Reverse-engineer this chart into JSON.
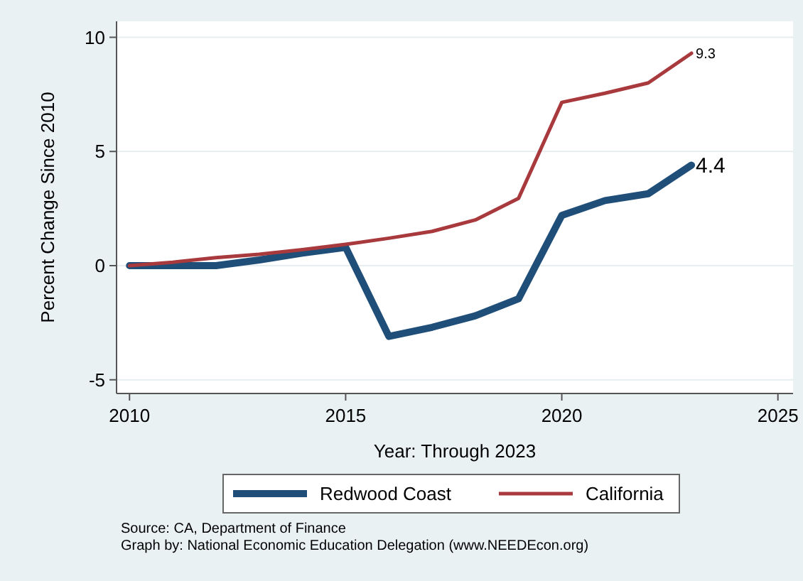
{
  "chart_data": {
    "type": "line",
    "xlabel": "Year: Through 2023",
    "ylabel": "Percent Change Since 2010",
    "x": [
      2010,
      2011,
      2012,
      2013,
      2014,
      2015,
      2016,
      2017,
      2018,
      2019,
      2020,
      2021,
      2022,
      2023
    ],
    "series": [
      {
        "name": "Redwood Coast",
        "color": "#1f4e79",
        "values": [
          0,
          0,
          0,
          0.25,
          0.55,
          0.8,
          -3.1,
          -2.7,
          -2.2,
          -1.45,
          2.2,
          2.85,
          3.15,
          4.4
        ],
        "value_labels": [
          null,
          null,
          null,
          null,
          null,
          null,
          null,
          null,
          null,
          null,
          null,
          null,
          null,
          "4.4"
        ]
      },
      {
        "name": "California",
        "color": "#a8393d",
        "values": [
          0,
          0.15,
          0.35,
          0.5,
          0.7,
          0.93,
          1.2,
          1.5,
          2.0,
          2.95,
          7.15,
          7.55,
          8.0,
          9.3
        ],
        "value_labels": [
          null,
          null,
          null,
          null,
          null,
          null,
          null,
          null,
          null,
          null,
          null,
          null,
          null,
          "9.3"
        ]
      }
    ],
    "xlim": [
      2009.7,
      2025.35
    ],
    "xticks": [
      2010,
      2015,
      2020,
      2025
    ],
    "ylim": [
      -5.6,
      10.7
    ],
    "yticks": [
      -5,
      0,
      5,
      10
    ],
    "grid": "y",
    "legend": "bottom",
    "marker": "none",
    "line_style": "solid",
    "annotations": [
      "Source: CA, Department of Finance",
      "Graph by: National Economic Education Delegation (www.NEEDEcon.org)"
    ]
  }
}
